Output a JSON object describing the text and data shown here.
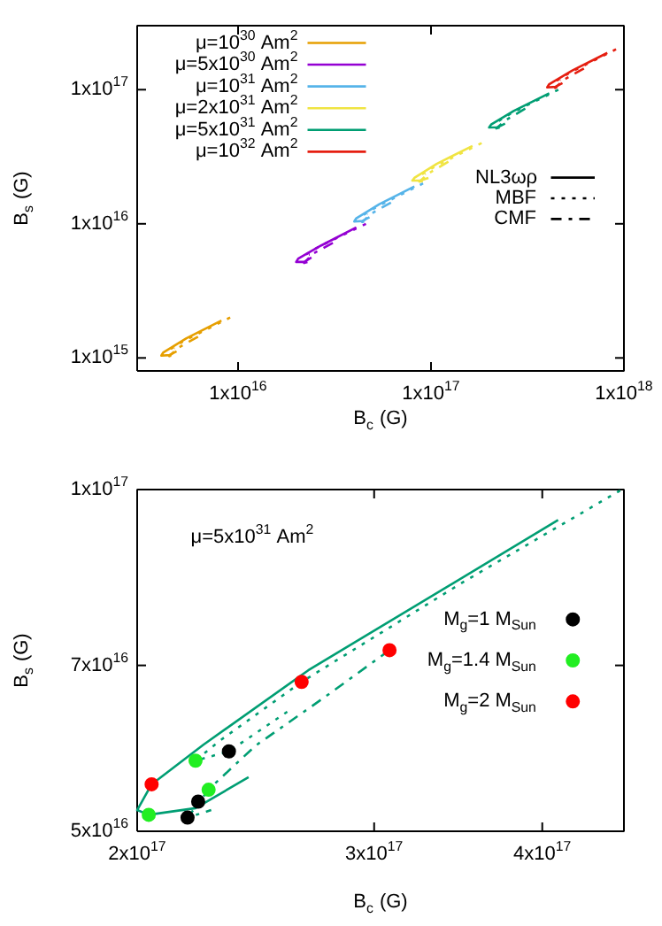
{
  "chart_data": [
    {
      "type": "line",
      "log": "xy",
      "xlim": [
        3000000000000000.0,
        1e+18
      ],
      "ylim": [
        800000000000000.0,
        3e+17
      ],
      "xticks": [
        {
          "value": 1e+16,
          "label": "1x10$^{16}$"
        },
        {
          "value": 1e+17,
          "label": "1x10$^{17}$"
        },
        {
          "value": 1e+18,
          "label": "1x10$^{18}$"
        }
      ],
      "yticks": [
        {
          "value": 1000000000000000.0,
          "label": "1x10$^{15}$"
        },
        {
          "value": 1e+16,
          "label": "1x10$^{16}$"
        },
        {
          "value": 1e+17,
          "label": "1x10$^{17}$"
        }
      ],
      "xlabel": "B$_{c}$ (G)",
      "ylabel": "B$_{s}$ (G)",
      "legend": "top left",
      "annotations": [
        "NL3ωρ",
        "MBF",
        "CMF"
      ],
      "series": [
        {
          "name": "μ=10$^{30}$ Am$^{2}$",
          "color": "#e69f00",
          "line_style": "solid",
          "x": [
            8200000000000000.0,
            5400000000000000.0,
            4100000000000000.0,
            4000000000000000.0,
            4400000000000000.0,
            4800000000000000.0
          ],
          "values": [
            1900000000000000.0,
            1400000000000000.0,
            1100000000000000.0,
            1040000000000000.0,
            1050000000000000.0,
            1120000000000000.0
          ]
        },
        {
          "color": "#e69f00",
          "line_style": "dotted",
          "x": [
            9100000000000000.0,
            5300000000000000.0,
            4400000000000000.0,
            4700000000000000.0
          ],
          "values": [
            2000000000000000.0,
            1350000000000000.0,
            1150000000000000.0,
            1180000000000000.0
          ]
        },
        {
          "color": "#e69f00",
          "line_style": "dashdot",
          "x": [
            6200000000000000.0,
            4900000000000000.0,
            4400000000000000.0,
            4500000000000000.0
          ],
          "values": [
            1440000000000000.0,
            1190000000000000.0,
            1030000000000000.0,
            1040000000000000.0
          ]
        },
        {
          "name": "μ=5x10$^{30}$ Am$^{2}$",
          "color": "#9400d3",
          "line_style": "solid",
          "x": [
            4.1e+16,
            2.7e+16,
            2.05e+16,
            2e+16,
            2.2e+16,
            2.4e+16
          ],
          "values": [
            9400000000000000.0,
            6900000000000000.0,
            5500000000000000.0,
            5200000000000000.0,
            5200000000000000.0,
            5600000000000000.0
          ]
        },
        {
          "color": "#9400d3",
          "line_style": "dotted",
          "x": [
            4.6e+16,
            2.65e+16,
            2.2e+16,
            2.35e+16
          ],
          "values": [
            1e+16,
            6800000000000000.0,
            5800000000000000.0,
            5900000000000000.0
          ]
        },
        {
          "color": "#9400d3",
          "line_style": "dashdot",
          "x": [
            3.1e+16,
            2.45e+16,
            2.2e+16,
            2.3e+16
          ],
          "values": [
            7200000000000000.0,
            6000000000000000.0,
            5100000000000000.0,
            5200000000000000.0
          ]
        },
        {
          "name": "μ=10$^{31}$ Am$^{2}$",
          "color": "#56b4e9",
          "line_style": "solid",
          "x": [
            8.2e+16,
            5.4e+16,
            4.1e+16,
            4e+16,
            4.4e+16,
            4.8e+16
          ],
          "values": [
            1.9e+16,
            1.4e+16,
            1.1e+16,
            1.04e+16,
            1.05e+16,
            1.12e+16
          ]
        },
        {
          "color": "#56b4e9",
          "line_style": "dotted",
          "x": [
            9.1e+16,
            5.3e+16,
            4.4e+16,
            4.7e+16
          ],
          "values": [
            2e+16,
            1.35e+16,
            1.15e+16,
            1.18e+16
          ]
        },
        {
          "color": "#56b4e9",
          "line_style": "dashdot",
          "x": [
            6.2e+16,
            4.9e+16,
            4.4e+16,
            4.5e+16
          ],
          "values": [
            1.44e+16,
            1.19e+16,
            1.03e+16,
            1.04e+16
          ]
        },
        {
          "name": "μ=2x10$^{31}$ Am$^{2}$",
          "color": "#f0e442",
          "line_style": "solid",
          "x": [
            1.64e+17,
            1.07e+17,
            8.2e+16,
            8e+16,
            8.8e+16,
            9.7e+16
          ],
          "values": [
            3.8e+16,
            2.8e+16,
            2.2e+16,
            2.1e+16,
            2.1e+16,
            2.2e+16
          ]
        },
        {
          "color": "#f0e442",
          "line_style": "dotted",
          "x": [
            1.83e+17,
            1.06e+17,
            8.8e+16,
            9.4e+16
          ],
          "values": [
            4e+16,
            2.7e+16,
            2.3e+16,
            2.35e+16
          ]
        },
        {
          "color": "#f0e442",
          "line_style": "dashdot",
          "x": [
            1.23e+17,
            9.8e+16,
            8.7e+16,
            9.1e+16
          ],
          "values": [
            2.9e+16,
            2.4e+16,
            2.06e+16,
            2.09e+16
          ]
        },
        {
          "name": "μ=5x10$^{31}$ Am$^{2}$",
          "color": "#009e73",
          "line_style": "solid",
          "x": [
            4.1e+17,
            2.68e+17,
            2.05e+17,
            2e+17,
            2.21e+17,
            2.42e+17
          ],
          "values": [
            9.4e+16,
            6.93e+16,
            5.5e+16,
            5.22e+16,
            5.24e+16,
            5.58e+16
          ]
        },
        {
          "color": "#009e73",
          "line_style": "dotted",
          "x": [
            4.57e+17,
            2.65e+17,
            2.21e+17,
            2.34e+17
          ],
          "values": [
            9.98e+16,
            6.77e+16,
            5.77e+16,
            5.88e+16
          ]
        },
        {
          "color": "#009e73",
          "line_style": "dashdot",
          "x": [
            3.08e+17,
            2.45e+17,
            2.18e+17,
            2.27e+17
          ],
          "values": [
            7.22e+16,
            5.95e+16,
            5.14e+16,
            5.22e+16
          ]
        },
        {
          "name": "μ=10$^{32}$ Am$^{2}$",
          "color": "#e51e10",
          "line_style": "solid",
          "x": [
            8.2e+17,
            5.4e+17,
            4.1e+17,
            4e+17,
            4.4e+17,
            4.8e+17
          ],
          "values": [
            1.88e+17,
            1.39e+17,
            1.1e+17,
            1.04e+17,
            1.05e+17,
            1.12e+17
          ]
        },
        {
          "color": "#e51e10",
          "line_style": "dotted",
          "x": [
            9.1e+17,
            5.3e+17,
            4.4e+17,
            4.7e+17
          ],
          "values": [
            2e+17,
            1.35e+17,
            1.15e+17,
            1.18e+17
          ]
        },
        {
          "color": "#e51e10",
          "line_style": "dashdot",
          "x": [
            6.2e+17,
            4.9e+17,
            4.4e+17,
            4.5e+17
          ],
          "values": [
            1.44e+17,
            1.19e+17,
            1.03e+17,
            1.04e+17
          ]
        }
      ]
    },
    {
      "type": "line",
      "log": "xy",
      "xlim": [
        2e+17,
        4.6e+17
      ],
      "ylim": [
        5e+16,
        1e+17
      ],
      "xticks": [
        {
          "value": 2e+17,
          "label": "2x10$^{17}$"
        },
        {
          "value": 3e+17,
          "label": "3x10$^{17}$"
        },
        {
          "value": 4e+17,
          "label": "4x10$^{17}$"
        }
      ],
      "yticks": [
        {
          "value": 5e+16,
          "label": "5x10$^{16}$"
        },
        {
          "value": 7e+16,
          "label": "7x10$^{16}$"
        },
        {
          "value": 1e+17,
          "label": "1x10$^{17}$"
        }
      ],
      "xlabel": "B$_{c}$ (G)",
      "ylabel": "B$_{s}$ (G)",
      "legend": "right",
      "annotations": [
        "μ=5x10$^{31}$ Am$^{2}$"
      ],
      "series": [
        {
          "color": "#009e73",
          "line_style": "solid",
          "x": [
            4.11e+17,
            2.68e+17,
            2.24e+17,
            2.05e+17,
            2e+17,
            2.04e+17,
            2.21e+17,
            2.42e+17
          ],
          "values": [
            9.4e+16,
            6.93e+16,
            5.96e+16,
            5.5e+16,
            5.22e+16,
            5.17e+16,
            5.24e+16,
            5.58e+16
          ]
        },
        {
          "color": "#009e73",
          "line_style": "dotted",
          "x": [
            4.57e+17,
            3.5e+17,
            2.65e+17,
            2.3e+17,
            2.21e+17,
            2.34e+17,
            2.6e+17
          ],
          "values": [
            9.98e+16,
            8.3e+16,
            6.77e+16,
            6e+16,
            5.77e+16,
            5.88e+16,
            6.4e+16
          ]
        },
        {
          "color": "#009e73",
          "line_style": "dashdot",
          "x": [
            3.08e+17,
            2.75e+17,
            2.45e+17,
            2.3e+17,
            2.26e+17,
            2.18e+17,
            2.27e+17
          ],
          "values": [
            7.22e+16,
            6.55e+16,
            5.95e+16,
            5.55e+16,
            5.44e+16,
            5.14e+16,
            5.22e+16
          ]
        },
        {
          "type": "scatter",
          "marker": "circle",
          "name": "M$_{g}$=1 M$_{Sun}$",
          "color": "#000000",
          "x": [
            2.18e+17,
            2.22e+17,
            2.34e+17
          ],
          "values": [
            5.14e+16,
            5.31e+16,
            5.88e+16
          ]
        },
        {
          "type": "scatter",
          "marker": "circle",
          "name": "M$_{g}$=1.4 M$_{Sun}$",
          "color": "#22ee22",
          "x": [
            2.04e+17,
            2.21e+17,
            2.26e+17
          ],
          "values": [
            5.17e+16,
            5.77e+16,
            5.44e+16
          ]
        },
        {
          "type": "scatter",
          "marker": "circle",
          "name": "M$_{g}$=2 M$_{Sun}$",
          "color": "#ff0000",
          "x": [
            2.05e+17,
            2.65e+17,
            3.08e+17
          ],
          "values": [
            5.5e+16,
            6.77e+16,
            7.22e+16
          ]
        }
      ]
    }
  ]
}
